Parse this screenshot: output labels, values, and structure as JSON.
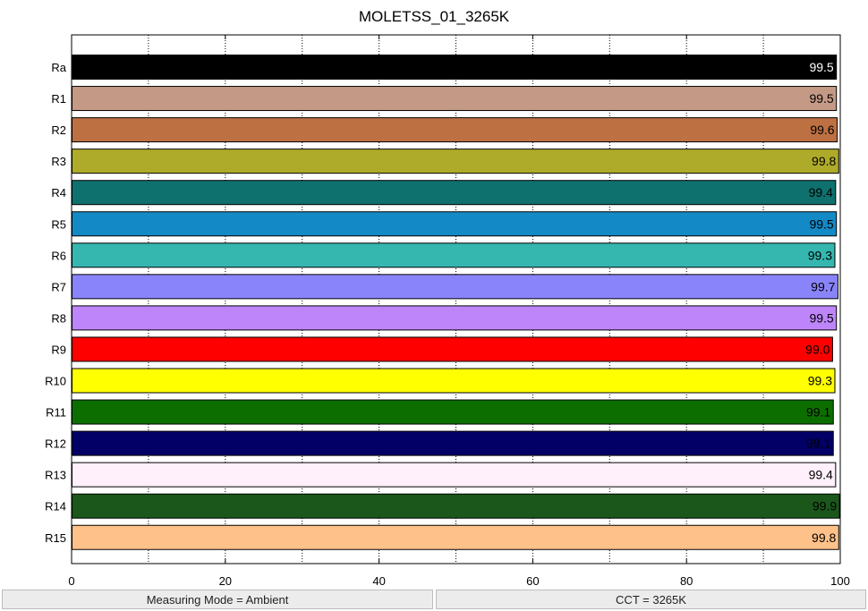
{
  "chart_data": {
    "type": "bar",
    "orientation": "horizontal",
    "title": "MOLETSS_01_3265K",
    "xlabel": "",
    "ylabel": "",
    "xlim": [
      0,
      100
    ],
    "xticks": [
      0,
      20,
      40,
      60,
      80,
      100
    ],
    "grid": "vertical dotted",
    "categories": [
      "Ra",
      "R1",
      "R2",
      "R3",
      "R4",
      "R5",
      "R6",
      "R7",
      "R8",
      "R9",
      "R10",
      "R11",
      "R12",
      "R13",
      "R14",
      "R15"
    ],
    "values": [
      99.5,
      99.5,
      99.6,
      99.8,
      99.4,
      99.5,
      99.3,
      99.7,
      99.5,
      99.0,
      99.3,
      99.1,
      99.1,
      99.4,
      99.9,
      99.8
    ],
    "value_labels": [
      "99.5",
      "99.5",
      "99.6",
      "99.8",
      "99.4",
      "99.5",
      "99.3",
      "99.7",
      "99.5",
      "99.0",
      "99.3",
      "99.1",
      "99.1",
      "99.4",
      "99.9",
      "99.8"
    ],
    "colors": [
      "#000000",
      "#c49a86",
      "#bd7042",
      "#afab2a",
      "#0f716e",
      "#138ac6",
      "#35b7b0",
      "#8a84fb",
      "#be85fb",
      "#ff0000",
      "#ffff00",
      "#0d6e00",
      "#020066",
      "#fff0fb",
      "#1b561b",
      "#ffc18a"
    ],
    "label_colors": [
      "#ffffff",
      "#000000",
      "#000000",
      "#000000",
      "#000000",
      "#000000",
      "#000000",
      "#000000",
      "#000000",
      "#000000",
      "#000000",
      "#000000",
      "#000000",
      "#000000",
      "#000000",
      "#000000"
    ]
  },
  "status": {
    "measuring_mode": "Measuring Mode = Ambient",
    "cct": "CCT = 3265K"
  }
}
